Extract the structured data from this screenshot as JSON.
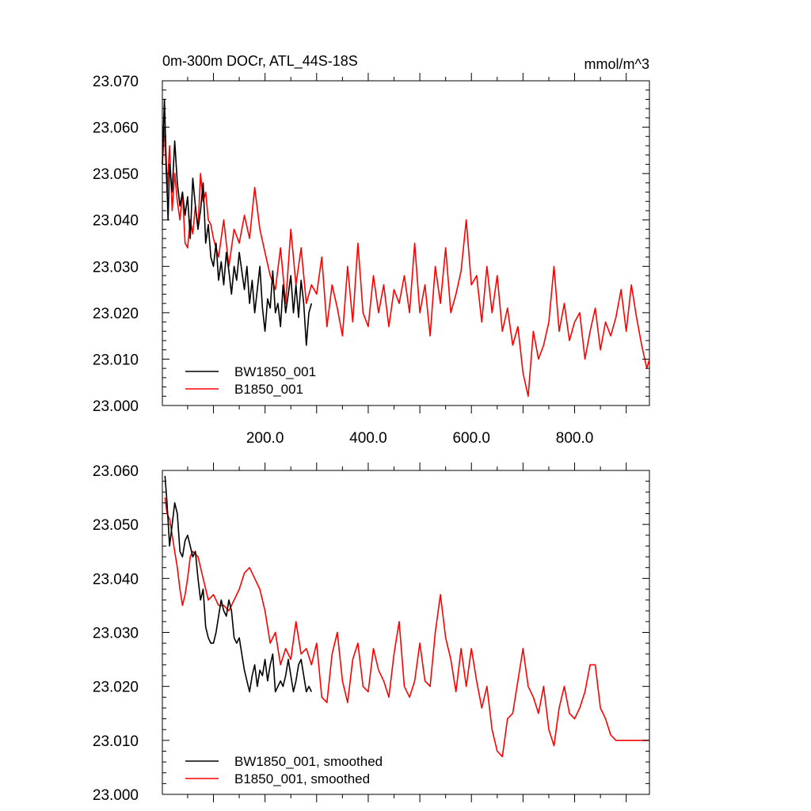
{
  "chart_data": [
    {
      "type": "line",
      "title": "0m-300m DOCr, ATL_44S-18S",
      "units": "mmol/m^3",
      "xlabel": "",
      "ylabel": "",
      "xlim": [
        1,
        945
      ],
      "ylim": [
        23.0,
        23.07
      ],
      "yticks": [
        {
          "value": 23.0,
          "label": "23.000"
        },
        {
          "value": 23.01,
          "label": "23.010"
        },
        {
          "value": 23.02,
          "label": "23.020"
        },
        {
          "value": 23.03,
          "label": "23.030"
        },
        {
          "value": 23.04,
          "label": "23.040"
        },
        {
          "value": 23.05,
          "label": "23.050"
        },
        {
          "value": 23.06,
          "label": "23.060"
        },
        {
          "value": 23.07,
          "label": "23.070"
        }
      ],
      "xticks": [
        {
          "value": 200,
          "label": "200.0"
        },
        {
          "value": 400,
          "label": "400.0"
        },
        {
          "value": 600,
          "label": "600.0"
        },
        {
          "value": 800,
          "label": "800.0"
        }
      ],
      "legend": "bottom-left",
      "series": [
        {
          "name": "BW1850_001",
          "color": "#000000",
          "x": [
            1,
            5,
            8,
            12,
            15,
            20,
            25,
            30,
            35,
            40,
            45,
            50,
            55,
            60,
            65,
            70,
            75,
            80,
            85,
            90,
            95,
            100,
            105,
            110,
            115,
            120,
            125,
            130,
            135,
            140,
            145,
            150,
            155,
            160,
            165,
            170,
            175,
            180,
            185,
            190,
            195,
            200,
            205,
            210,
            215,
            220,
            225,
            230,
            235,
            240,
            245,
            250,
            255,
            260,
            265,
            270,
            275,
            280,
            285,
            290
          ],
          "values": [
            23.052,
            23.066,
            23.054,
            23.04,
            23.052,
            23.046,
            23.057,
            23.048,
            23.043,
            23.046,
            23.041,
            23.045,
            23.036,
            23.049,
            23.043,
            23.038,
            23.042,
            23.048,
            23.035,
            23.039,
            23.032,
            23.03,
            23.035,
            23.027,
            23.031,
            23.026,
            23.033,
            23.029,
            23.024,
            23.03,
            23.027,
            23.033,
            23.029,
            23.025,
            23.03,
            23.022,
            23.027,
            23.02,
            23.025,
            23.03,
            23.021,
            23.016,
            23.023,
            23.021,
            23.029,
            23.02,
            23.022,
            23.017,
            23.026,
            23.02,
            23.024,
            23.028,
            23.02,
            23.026,
            23.019,
            23.027,
            23.022,
            23.013,
            23.02,
            23.022
          ]
        },
        {
          "name": "B1850_001",
          "color": "#ff0000",
          "x": [
            1,
            5,
            10,
            15,
            20,
            25,
            30,
            35,
            40,
            45,
            50,
            55,
            60,
            65,
            70,
            75,
            80,
            85,
            90,
            95,
            100,
            110,
            120,
            130,
            140,
            150,
            160,
            170,
            180,
            190,
            200,
            210,
            220,
            230,
            240,
            250,
            260,
            270,
            280,
            290,
            300,
            310,
            320,
            330,
            340,
            350,
            360,
            370,
            380,
            390,
            400,
            410,
            420,
            430,
            440,
            450,
            460,
            470,
            480,
            490,
            500,
            510,
            520,
            530,
            540,
            550,
            560,
            570,
            580,
            590,
            600,
            610,
            620,
            630,
            640,
            650,
            660,
            670,
            680,
            690,
            700,
            710,
            720,
            730,
            740,
            750,
            760,
            770,
            780,
            790,
            800,
            810,
            820,
            830,
            840,
            850,
            860,
            870,
            880,
            890,
            900,
            910,
            920,
            930,
            940,
            945
          ],
          "values": [
            23.052,
            23.06,
            23.046,
            23.056,
            23.042,
            23.05,
            23.044,
            23.04,
            23.046,
            23.035,
            23.034,
            23.04,
            23.037,
            23.043,
            23.038,
            23.05,
            23.044,
            23.046,
            23.04,
            23.039,
            23.036,
            23.032,
            23.04,
            23.03,
            23.038,
            23.035,
            23.041,
            23.036,
            23.047,
            23.038,
            23.033,
            23.028,
            23.025,
            23.034,
            23.022,
            23.038,
            23.026,
            23.034,
            23.022,
            23.026,
            23.024,
            23.032,
            23.017,
            23.026,
            23.021,
            23.015,
            23.03,
            23.018,
            23.035,
            23.02,
            23.017,
            23.028,
            23.02,
            23.026,
            23.017,
            23.025,
            23.022,
            23.028,
            23.02,
            23.035,
            23.02,
            23.026,
            23.015,
            23.03,
            23.022,
            23.034,
            23.02,
            23.024,
            23.029,
            23.04,
            23.026,
            23.028,
            23.018,
            23.03,
            23.02,
            23.028,
            23.016,
            23.021,
            23.013,
            23.017,
            23.007,
            23.002,
            23.016,
            23.01,
            23.013,
            23.018,
            23.03,
            23.016,
            23.022,
            23.014,
            23.018,
            23.02,
            23.01,
            23.016,
            23.021,
            23.012,
            23.018,
            23.015,
            23.019,
            23.025,
            23.016,
            23.026,
            23.019,
            23.013,
            23.008,
            23.01
          ]
        }
      ]
    },
    {
      "type": "line",
      "title": "",
      "xlabel": "",
      "ylabel": "",
      "xlim": [
        1,
        945
      ],
      "ylim": [
        23.0,
        23.06
      ],
      "yticks": [
        {
          "value": 23.0,
          "label": "23.000"
        },
        {
          "value": 23.01,
          "label": "23.010"
        },
        {
          "value": 23.02,
          "label": "23.020"
        },
        {
          "value": 23.03,
          "label": "23.030"
        },
        {
          "value": 23.04,
          "label": "23.040"
        },
        {
          "value": 23.05,
          "label": "23.050"
        },
        {
          "value": 23.06,
          "label": "23.060"
        }
      ],
      "xticks": [],
      "legend": "bottom-left",
      "series": [
        {
          "name": "BW1850_001, smoothed",
          "color": "#000000",
          "x": [
            6,
            10,
            15,
            20,
            25,
            30,
            35,
            40,
            45,
            50,
            55,
            60,
            65,
            70,
            75,
            80,
            85,
            90,
            95,
            100,
            105,
            110,
            115,
            120,
            125,
            130,
            135,
            140,
            145,
            150,
            155,
            160,
            165,
            170,
            175,
            180,
            185,
            190,
            195,
            200,
            205,
            210,
            215,
            220,
            225,
            230,
            235,
            240,
            245,
            250,
            255,
            260,
            265,
            270,
            275,
            280,
            285,
            290
          ],
          "values": [
            23.059,
            23.054,
            23.046,
            23.05,
            23.054,
            23.052,
            23.045,
            23.044,
            23.047,
            23.048,
            23.046,
            23.044,
            23.045,
            23.04,
            23.036,
            23.038,
            23.031,
            23.029,
            23.028,
            23.028,
            23.03,
            23.033,
            23.036,
            23.034,
            23.033,
            23.036,
            23.034,
            23.029,
            23.028,
            23.029,
            23.026,
            23.023,
            23.021,
            23.019,
            23.022,
            23.024,
            23.02,
            23.023,
            23.022,
            23.025,
            23.021,
            23.024,
            23.026,
            23.019,
            23.02,
            23.021,
            23.02,
            23.022,
            23.025,
            23.022,
            23.019,
            23.021,
            23.024,
            23.025,
            23.022,
            23.019,
            23.02,
            23.019
          ]
        },
        {
          "name": "B1850_001, smoothed",
          "color": "#ff0000",
          "x": [
            6,
            10,
            15,
            20,
            25,
            30,
            35,
            40,
            45,
            50,
            55,
            60,
            70,
            80,
            90,
            100,
            110,
            120,
            130,
            140,
            150,
            160,
            170,
            180,
            190,
            200,
            210,
            220,
            230,
            240,
            250,
            260,
            270,
            280,
            290,
            300,
            310,
            320,
            330,
            340,
            350,
            360,
            370,
            380,
            390,
            400,
            410,
            420,
            430,
            440,
            450,
            460,
            470,
            480,
            490,
            500,
            510,
            520,
            530,
            540,
            550,
            560,
            570,
            580,
            590,
            600,
            610,
            620,
            630,
            640,
            650,
            660,
            670,
            680,
            690,
            700,
            710,
            720,
            730,
            740,
            750,
            760,
            770,
            780,
            790,
            800,
            810,
            820,
            830,
            840,
            850,
            860,
            870,
            880,
            890,
            900,
            910,
            920,
            930,
            940,
            945
          ],
          "values": [
            23.055,
            23.052,
            23.051,
            23.048,
            23.045,
            23.042,
            23.038,
            23.035,
            23.037,
            23.04,
            23.044,
            23.045,
            23.044,
            23.04,
            23.036,
            23.037,
            23.035,
            23.035,
            23.034,
            23.036,
            23.038,
            23.041,
            23.042,
            23.04,
            23.038,
            23.034,
            23.028,
            23.03,
            23.024,
            23.027,
            23.025,
            23.032,
            23.026,
            23.027,
            23.024,
            23.028,
            23.018,
            23.017,
            23.026,
            23.03,
            23.021,
            23.017,
            23.025,
            23.028,
            23.02,
            23.019,
            23.027,
            23.023,
            23.021,
            23.018,
            23.026,
            23.032,
            23.02,
            23.018,
            23.021,
            23.028,
            23.021,
            23.02,
            23.03,
            23.037,
            23.029,
            23.025,
            23.019,
            23.027,
            23.02,
            23.027,
            23.021,
            23.016,
            23.02,
            23.012,
            23.008,
            23.007,
            23.014,
            23.015,
            23.021,
            23.027,
            23.02,
            23.018,
            23.015,
            23.02,
            23.012,
            23.009,
            23.016,
            23.02,
            23.015,
            23.014,
            23.016,
            23.019,
            23.024,
            23.024,
            23.016,
            23.014,
            23.011,
            23.01,
            23.01,
            23.01,
            23.01,
            23.01,
            23.01,
            23.01,
            23.01
          ]
        }
      ]
    }
  ]
}
